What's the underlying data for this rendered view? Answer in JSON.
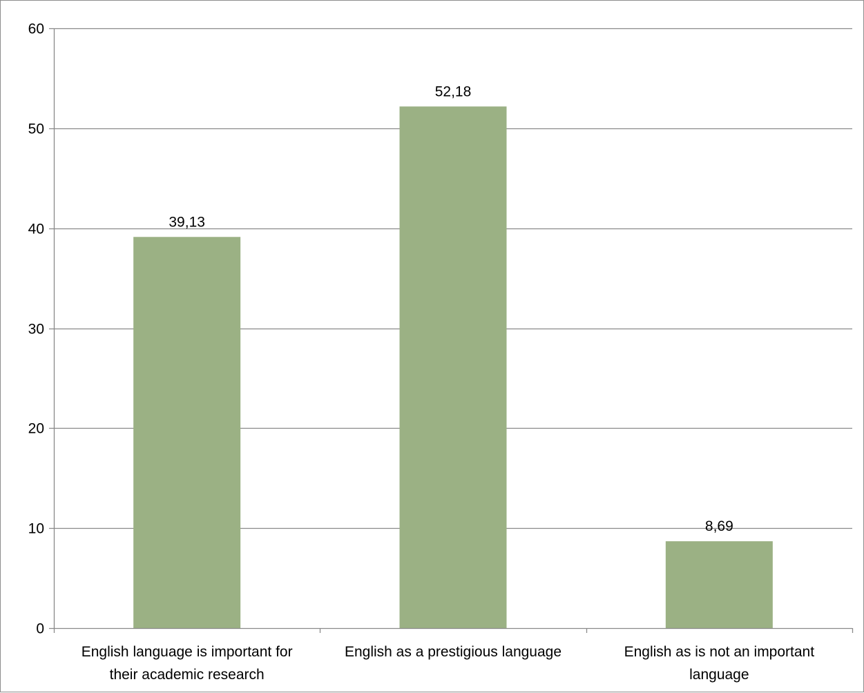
{
  "chart_data": {
    "type": "bar",
    "categories": [
      [
        "English language is important for",
        "their academic research"
      ],
      [
        "English as a prestigious language"
      ],
      [
        "English as is not an important",
        "language"
      ]
    ],
    "values": [
      39.13,
      52.18,
      8.69
    ],
    "value_labels": [
      "39,13",
      "52,18",
      "8,69"
    ],
    "ylim": [
      0,
      60
    ],
    "y_ticks": [
      0,
      10,
      20,
      30,
      40,
      50,
      60
    ],
    "grid": true,
    "legend": "none",
    "bar_color": "#9bb184",
    "gridline_color": "#898989"
  }
}
